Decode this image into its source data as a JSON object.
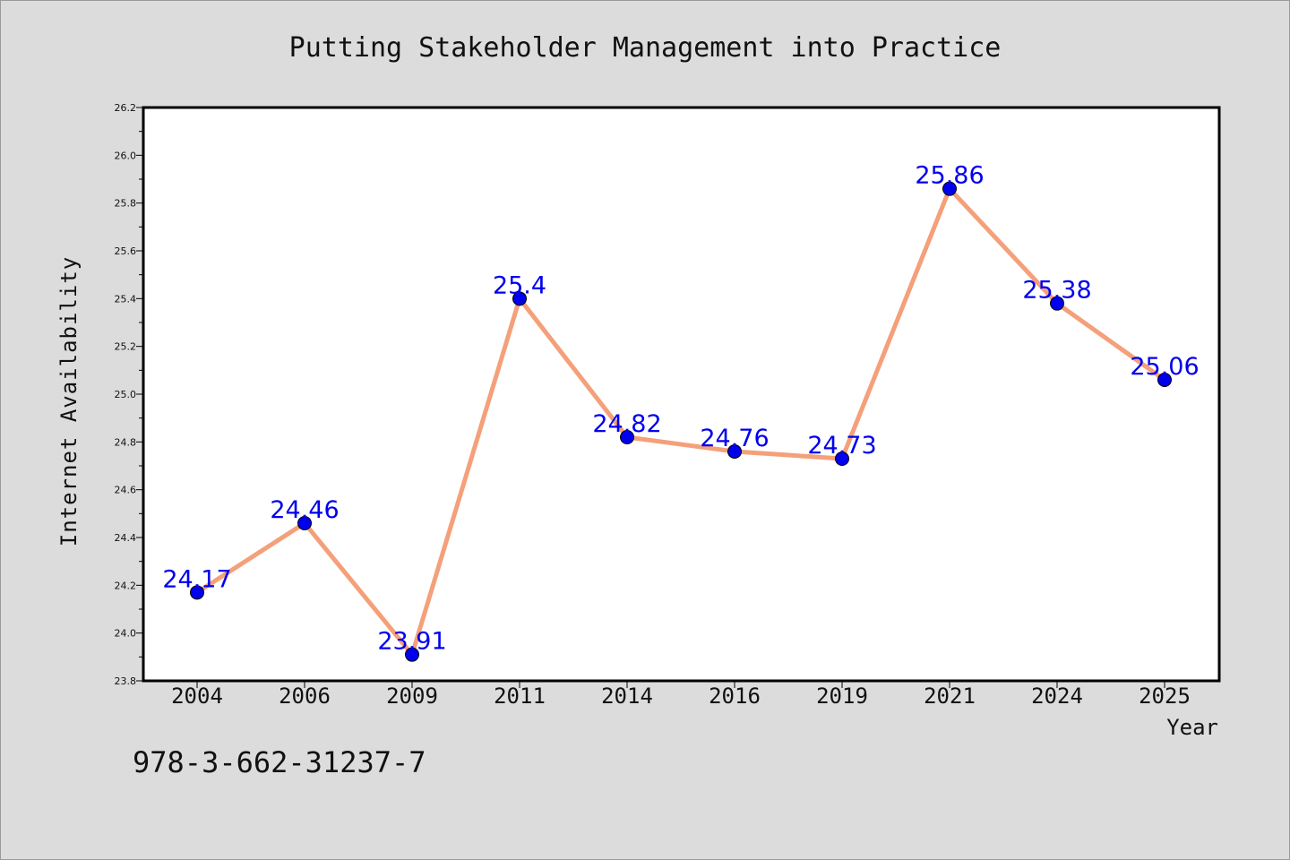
{
  "chart_data": {
    "type": "line",
    "title": "Putting Stakeholder Management into Practice",
    "xlabel": "Year",
    "ylabel": "Internet Availability",
    "categories": [
      "2004",
      "2006",
      "2009",
      "2011",
      "2014",
      "2016",
      "2019",
      "2021",
      "2024",
      "2025"
    ],
    "values": [
      24.17,
      24.46,
      23.91,
      25.4,
      24.82,
      24.76,
      24.73,
      25.86,
      25.38,
      25.06
    ],
    "data_labels": [
      "24.17",
      "24.46",
      "23.91",
      "25.4",
      "24.82",
      "24.76",
      "24.73",
      "25.86",
      "25.38",
      "25.06"
    ],
    "ylim": [
      23.8,
      26.2
    ],
    "yticks": [
      "23.8",
      "24.0",
      "24.2",
      "24.4",
      "24.6",
      "24.8",
      "25.0",
      "25.2",
      "25.4",
      "25.6",
      "25.8",
      "26.0",
      "26.2"
    ],
    "grid": false,
    "legend": "none",
    "line_color": "#f4a07a",
    "marker_color": "#0000ee",
    "label_color": "#0000ee"
  },
  "footer": {
    "isbn": "978-3-662-31237-7"
  }
}
